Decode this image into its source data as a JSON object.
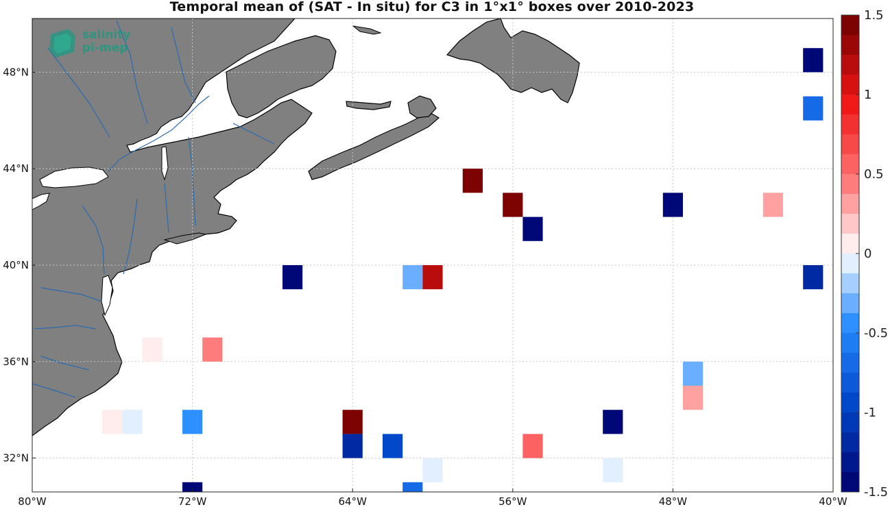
{
  "title": "Temporal mean of (SAT - In situ) for C3 in 1°x1° boxes over 2010-2023",
  "logo": {
    "line1": "salinity",
    "line2": "pi-mep"
  },
  "colors": {
    "land": "#808080",
    "rivers": "#2a6bb0",
    "coast": "#000000",
    "grid": "#c8c8c8"
  },
  "map": {
    "lon_range": [
      -80,
      -40
    ],
    "lat_range": [
      30,
      50
    ],
    "lon_ticks": [
      -80,
      -72,
      -64,
      -56,
      -48,
      -40
    ],
    "lon_tick_labels": [
      "80°W",
      "72°W",
      "64°W",
      "56°W",
      "48°W",
      "40°W"
    ],
    "lat_ticks": [
      32,
      36,
      40,
      44,
      48
    ],
    "lat_tick_labels": [
      "32°N",
      "36°N",
      "40°N",
      "44°N",
      "48°N"
    ],
    "grid": true
  },
  "chart_data": {
    "type": "heatmap",
    "title": "Temporal mean of (SAT - In situ) for C3 in 1°x1° boxes over 2010-2023",
    "value_range": [
      -1.5,
      1.5
    ],
    "colorbar_ticks": [
      1.5,
      1,
      0.5,
      0,
      -0.5,
      -1,
      -1.5
    ],
    "colorbar_tick_labels": [
      "1.5",
      "1",
      "0.5",
      "0",
      "-0.5",
      "-1",
      "-1.5"
    ],
    "boxes": [
      {
        "lon": -41,
        "lat": 48.5,
        "value": -1.4
      },
      {
        "lon": -41,
        "lat": 46.5,
        "value": -0.65
      },
      {
        "lon": -58,
        "lat": 43.5,
        "value": 1.45
      },
      {
        "lon": -56,
        "lat": 42.5,
        "value": 1.45
      },
      {
        "lon": -48,
        "lat": 42.5,
        "value": -1.5
      },
      {
        "lon": -43,
        "lat": 42.5,
        "value": 0.25
      },
      {
        "lon": -55,
        "lat": 41.5,
        "value": -1.45
      },
      {
        "lon": -67,
        "lat": 39.5,
        "value": -1.5
      },
      {
        "lon": -61,
        "lat": 39.5,
        "value": -0.35
      },
      {
        "lon": -60,
        "lat": 39.5,
        "value": 1.2
      },
      {
        "lon": -41,
        "lat": 39.5,
        "value": -1.25
      },
      {
        "lon": -74,
        "lat": 36.5,
        "value": 0.1
      },
      {
        "lon": -71,
        "lat": 36.5,
        "value": 0.4
      },
      {
        "lon": -47,
        "lat": 35.5,
        "value": -0.35
      },
      {
        "lon": -47,
        "lat": 34.5,
        "value": 0.35
      },
      {
        "lon": -76,
        "lat": 33.5,
        "value": 0.1
      },
      {
        "lon": -75,
        "lat": 33.5,
        "value": -0.1
      },
      {
        "lon": -72,
        "lat": 33.5,
        "value": -0.5
      },
      {
        "lon": -64,
        "lat": 33.5,
        "value": 1.45
      },
      {
        "lon": -51,
        "lat": 33.5,
        "value": -1.5
      },
      {
        "lon": -64,
        "lat": 32.5,
        "value": -1.25
      },
      {
        "lon": -62,
        "lat": 32.5,
        "value": -0.9
      },
      {
        "lon": -55,
        "lat": 32.5,
        "value": 0.55
      },
      {
        "lon": -60,
        "lat": 31.5,
        "value": -0.1
      },
      {
        "lon": -51,
        "lat": 31.5,
        "value": -0.1
      },
      {
        "lon": -72,
        "lat": 30.5,
        "value": -1.5
      },
      {
        "lon": -61,
        "lat": 30.5,
        "value": -0.75
      }
    ]
  }
}
